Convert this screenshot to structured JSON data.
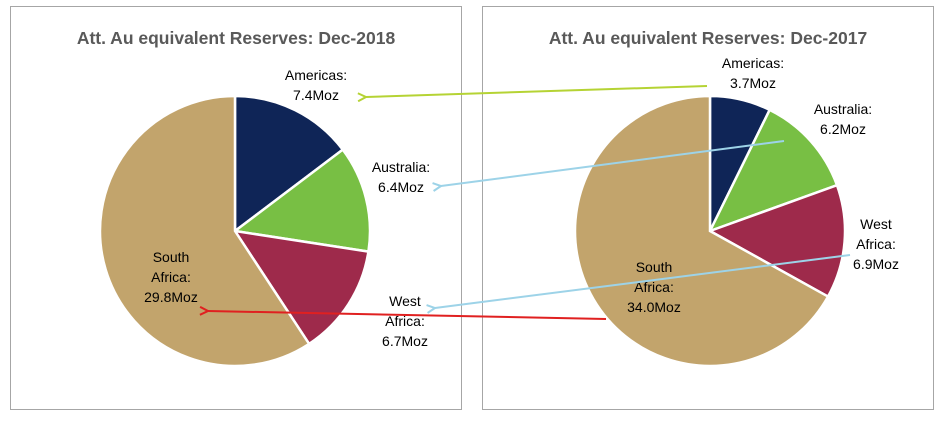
{
  "chart_data": [
    {
      "type": "pie",
      "title": "Att. Au equivalent Reserves: Dec-2018",
      "slices": [
        {
          "name": "Americas",
          "value": 7.4,
          "label": [
            "Americas:",
            "7.4Moz"
          ],
          "color": "#0f2557"
        },
        {
          "name": "Australia",
          "value": 6.4,
          "label": [
            "Australia:",
            "6.4Moz"
          ],
          "color": "#78bf44"
        },
        {
          "name": "West Africa",
          "value": 6.7,
          "label": [
            "West",
            "Africa:",
            "6.7Moz"
          ],
          "color": "#9e2a4b"
        },
        {
          "name": "South Africa",
          "value": 29.8,
          "label": [
            "South",
            "Africa:",
            "29.8Moz"
          ],
          "color": "#c2a46c"
        }
      ]
    },
    {
      "type": "pie",
      "title": "Att. Au equivalent Reserves: Dec-2017",
      "slices": [
        {
          "name": "Americas",
          "value": 3.7,
          "label": [
            "Americas:",
            "3.7Moz"
          ],
          "color": "#0f2557"
        },
        {
          "name": "Australia",
          "value": 6.2,
          "label": [
            "Australia:",
            "6.2Moz"
          ],
          "color": "#78bf44"
        },
        {
          "name": "West Africa",
          "value": 6.9,
          "label": [
            "West",
            "Africa:",
            "6.9Moz"
          ],
          "color": "#9e2a4b"
        },
        {
          "name": "South Africa",
          "value": 34.0,
          "label": [
            "South",
            "Africa:",
            "34.0Moz"
          ],
          "color": "#c2a46c"
        }
      ]
    }
  ],
  "arrow_colors": {
    "Americas": "#b5d334",
    "Australia": "#9dd3e8",
    "West Africa": "#9dd3e8",
    "South Africa": "#e02020"
  }
}
